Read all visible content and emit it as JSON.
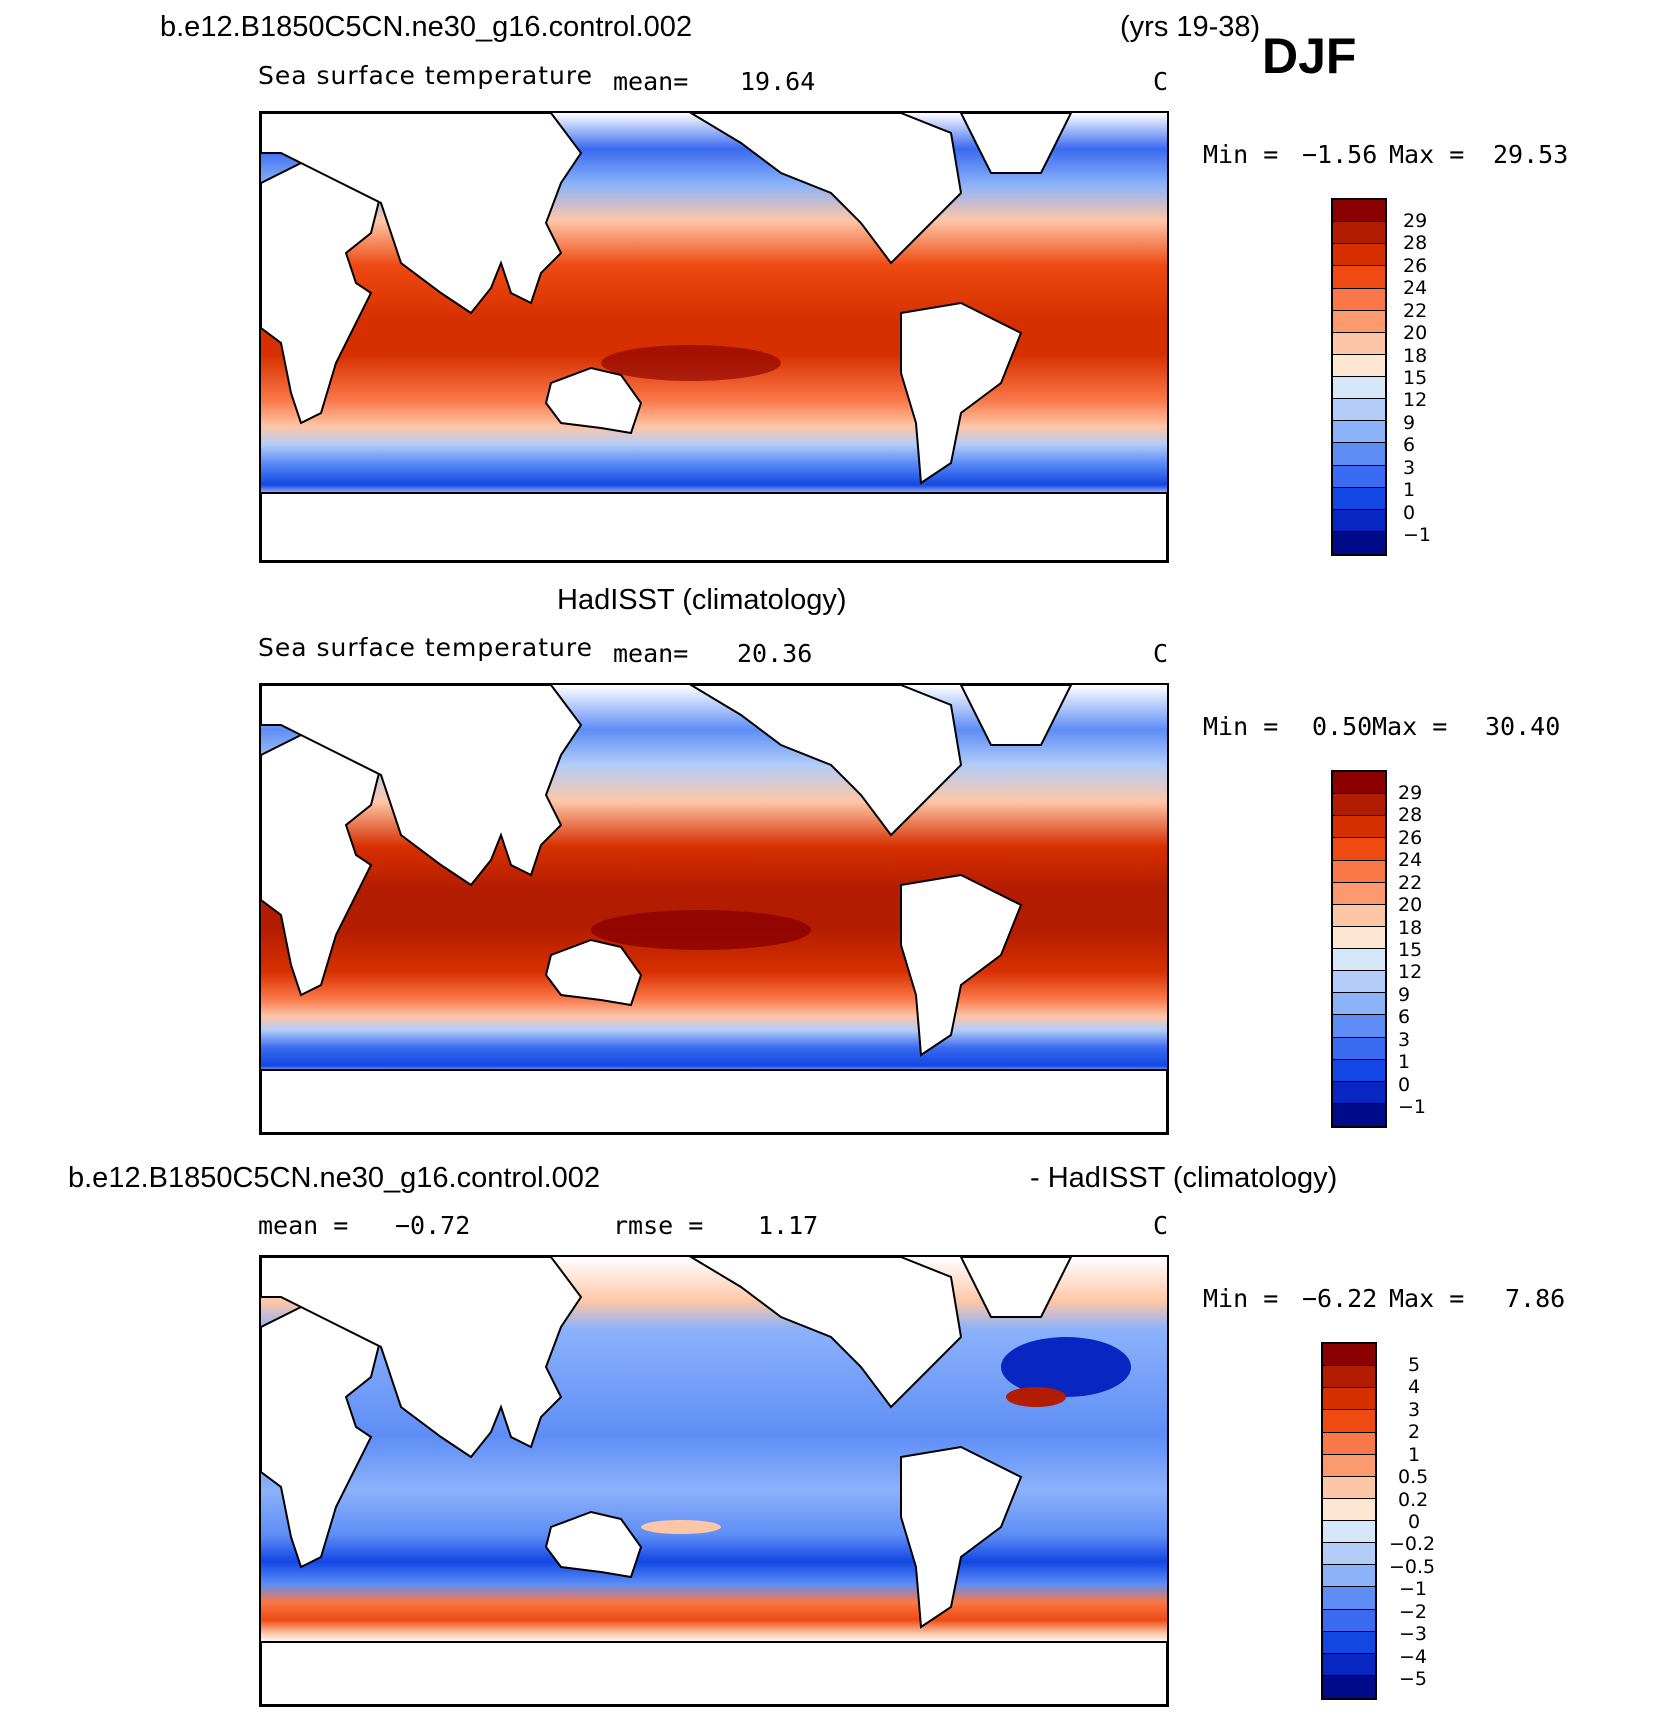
{
  "header": {
    "case_name": "b.e12.B1850C5CN.ne30_g16.control.002",
    "years": "(yrs 19-38)",
    "season": "DJF"
  },
  "panels": [
    {
      "title": "",
      "subtitle": "Sea surface temperature",
      "stat_label": "mean=",
      "stat_value": "19.64",
      "units": "C",
      "min_label": "Min =",
      "min_value": "−1.56",
      "max_label": "Max =",
      "max_value": "29.53",
      "colorbar_labels": [
        "29",
        "28",
        "26",
        "24",
        "22",
        "20",
        "18",
        "15",
        "12",
        "9",
        "6",
        "3",
        "1",
        "0",
        "−1"
      ],
      "colors": [
        "#8b0000",
        "#b21c00",
        "#d73000",
        "#ee4a12",
        "#fa7748",
        "#fb9a6e",
        "#fdc6a7",
        "#fde6d2",
        "#d4e6f7",
        "#b3cdf8",
        "#8cb2fa",
        "#5e8df6",
        "#3a6af0",
        "#1247e3",
        "#0726c2",
        "#000b8a"
      ]
    },
    {
      "title": "HadISST (climatology)",
      "subtitle": "Sea surface temperature",
      "stat_label": "mean=",
      "stat_value": "20.36",
      "units": "C",
      "min_label": "Min =",
      "min_value": "0.50",
      "max_label": "Max =",
      "max_value": "30.40",
      "colorbar_labels": [
        "29",
        "28",
        "26",
        "24",
        "22",
        "20",
        "18",
        "15",
        "12",
        "9",
        "6",
        "3",
        "1",
        "0",
        "−1"
      ],
      "colors": [
        "#8b0000",
        "#b21c00",
        "#d73000",
        "#ee4a12",
        "#fa7748",
        "#fb9a6e",
        "#fdc6a7",
        "#fde6d2",
        "#d4e6f7",
        "#b3cdf8",
        "#8cb2fa",
        "#5e8df6",
        "#3a6af0",
        "#1247e3",
        "#0726c2",
        "#000b8a"
      ]
    },
    {
      "title_left": "b.e12.B1850C5CN.ne30_g16.control.002",
      "title_right": "- HadISST (climatology)",
      "stat_label": "mean =",
      "stat_value": "−0.72",
      "rmse_label": "rmse =",
      "rmse_value": "1.17",
      "units": "C",
      "min_label": "Min =",
      "min_value": "−6.22",
      "max_label": "Max =",
      "max_value": "7.86",
      "colorbar_labels": [
        "5",
        "4",
        "3",
        "2",
        "1",
        "0.5",
        "0.2",
        "0",
        "−0.2",
        "−0.5",
        "−1",
        "−2",
        "−3",
        "−4",
        "−5"
      ],
      "colors": [
        "#8b0000",
        "#b21c00",
        "#d73000",
        "#ee4a12",
        "#fa7748",
        "#fb9a6e",
        "#fdc6a7",
        "#fde6d2",
        "#d4e6f7",
        "#b3cdf8",
        "#8cb2fa",
        "#5e8df6",
        "#3a6af0",
        "#1247e3",
        "#0726c2",
        "#000b8a"
      ]
    }
  ]
}
